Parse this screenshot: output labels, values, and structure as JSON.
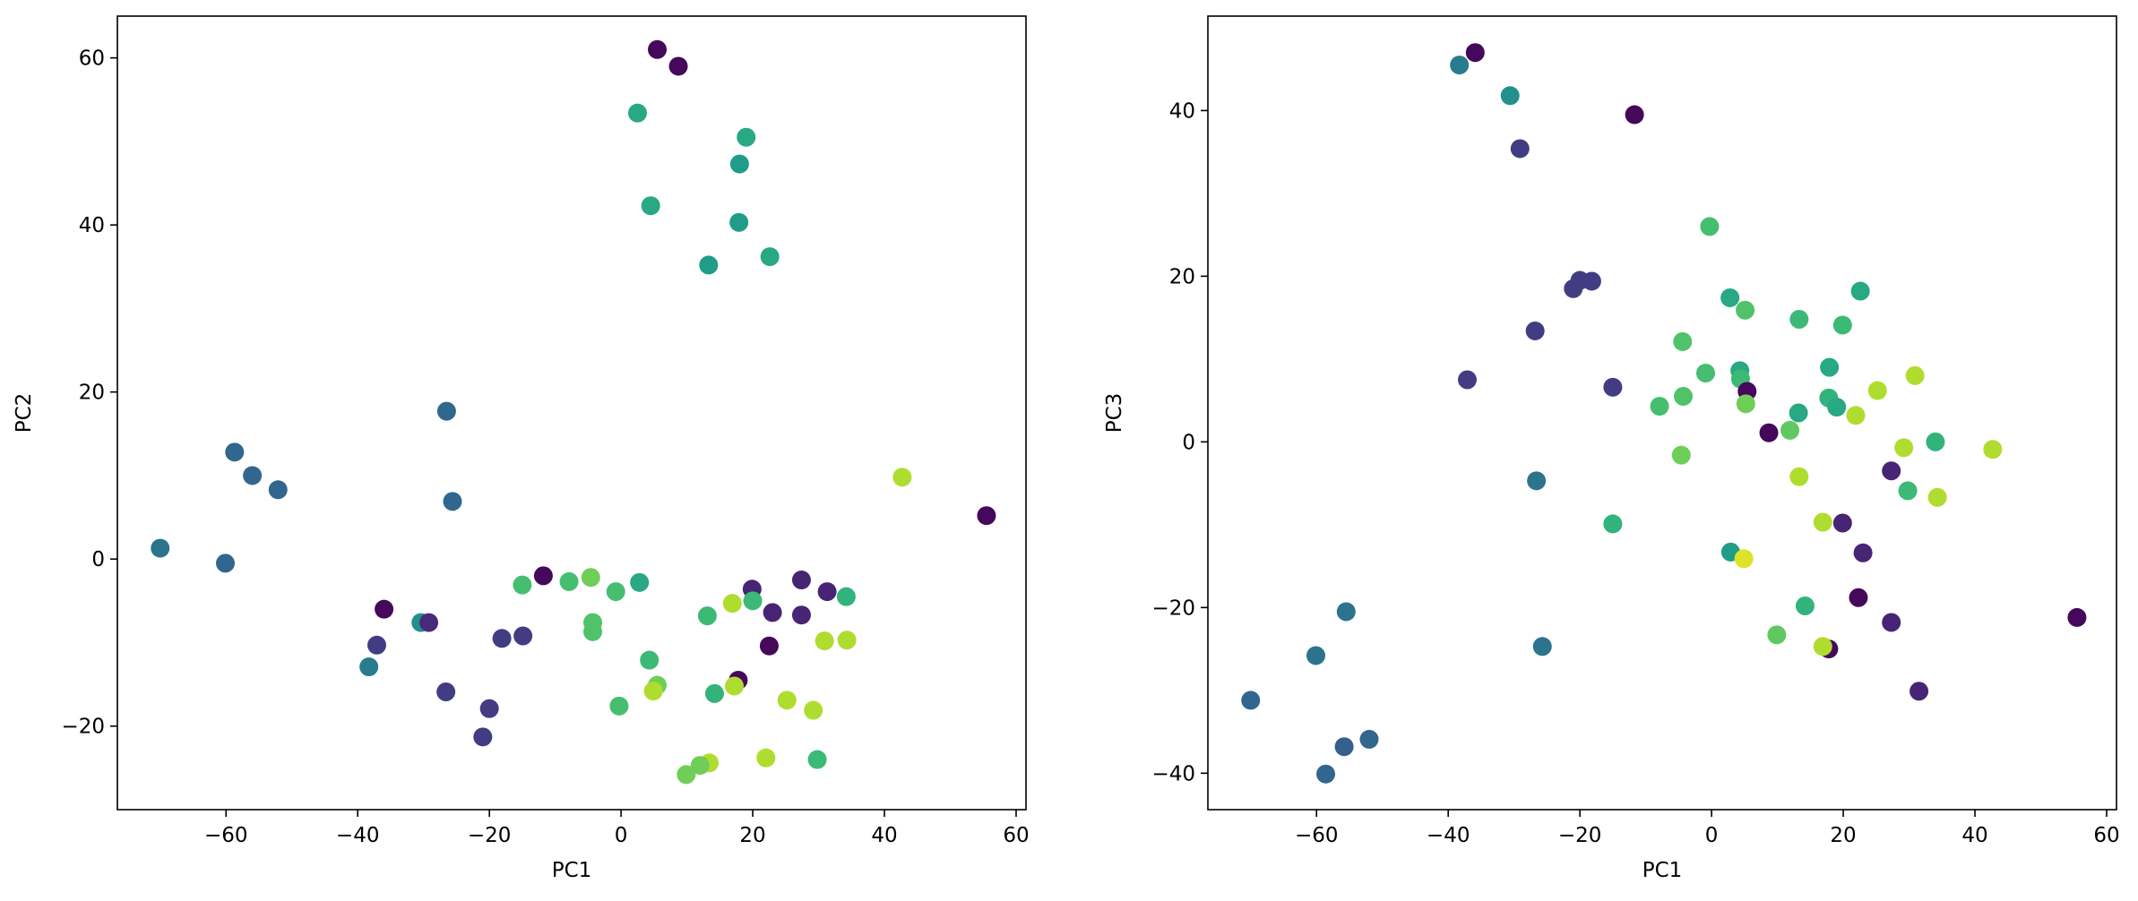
{
  "colormap": [
    "#440154",
    "#482878",
    "#3e4a89",
    "#31688e",
    "#26828e",
    "#1f9e89",
    "#35b779",
    "#6ece58",
    "#b5de2b",
    "#fde725"
  ],
  "chart_data": [
    {
      "type": "scatter",
      "title": "",
      "xlabel": "PC1",
      "ylabel": "PC2",
      "xlim": [
        -76.5,
        61.5
      ],
      "ylim": [
        -30,
        65
      ],
      "xticks": [
        -60,
        -40,
        -20,
        0,
        20,
        40,
        60
      ],
      "yticks": [
        -20,
        0,
        20,
        40,
        60
      ],
      "grid": false,
      "legend": "none",
      "marker_color": "viridis",
      "points": [
        {
          "x": 5.5,
          "y": 61,
          "c": 0.02
        },
        {
          "x": 8.7,
          "y": 59,
          "c": 0.02
        },
        {
          "x": 2.5,
          "y": 53.4,
          "c": 0.6
        },
        {
          "x": 19,
          "y": 50.5,
          "c": 0.6
        },
        {
          "x": 18,
          "y": 47.3,
          "c": 0.55
        },
        {
          "x": 4.5,
          "y": 42.3,
          "c": 0.6
        },
        {
          "x": 17.9,
          "y": 40.3,
          "c": 0.55
        },
        {
          "x": 22.6,
          "y": 36.2,
          "c": 0.6
        },
        {
          "x": 13.3,
          "y": 35.2,
          "c": 0.55
        },
        {
          "x": -26.5,
          "y": 17.7,
          "c": 0.33
        },
        {
          "x": -58.7,
          "y": 12.8,
          "c": 0.33
        },
        {
          "x": -56,
          "y": 10,
          "c": 0.33
        },
        {
          "x": -52.1,
          "y": 8.3,
          "c": 0.33
        },
        {
          "x": -25.6,
          "y": 6.9,
          "c": 0.33
        },
        {
          "x": 42.7,
          "y": 9.8,
          "c": 0.88
        },
        {
          "x": 55.5,
          "y": 5.2,
          "c": 0.02
        },
        {
          "x": -70,
          "y": 1.3,
          "c": 0.38
        },
        {
          "x": -60.1,
          "y": -0.5,
          "c": 0.33
        },
        {
          "x": -11.8,
          "y": -2,
          "c": 0.02
        },
        {
          "x": -4.6,
          "y": -2.2,
          "c": 0.78
        },
        {
          "x": -7.9,
          "y": -2.7,
          "c": 0.7
        },
        {
          "x": 2.8,
          "y": -2.8,
          "c": 0.6
        },
        {
          "x": 27.4,
          "y": -2.5,
          "c": 0.1
        },
        {
          "x": -15,
          "y": -3.1,
          "c": 0.7
        },
        {
          "x": -0.8,
          "y": -3.9,
          "c": 0.7
        },
        {
          "x": 19.9,
          "y": -3.6,
          "c": 0.1
        },
        {
          "x": 31.3,
          "y": -3.9,
          "c": 0.1
        },
        {
          "x": 34.2,
          "y": -4.5,
          "c": 0.65
        },
        {
          "x": 20,
          "y": -5,
          "c": 0.68
        },
        {
          "x": 16.9,
          "y": -5.3,
          "c": 0.88
        },
        {
          "x": -36,
          "y": -6,
          "c": 0.02
        },
        {
          "x": 23,
          "y": -6.4,
          "c": 0.1
        },
        {
          "x": 27.4,
          "y": -6.7,
          "c": 0.1
        },
        {
          "x": 13.1,
          "y": -6.8,
          "c": 0.68
        },
        {
          "x": -30.4,
          "y": -7.6,
          "c": 0.5
        },
        {
          "x": -29.2,
          "y": -7.6,
          "c": 0.12
        },
        {
          "x": -4.3,
          "y": -7.6,
          "c": 0.72
        },
        {
          "x": -4.3,
          "y": -8.7,
          "c": 0.72
        },
        {
          "x": -14.9,
          "y": -9.2,
          "c": 0.18
        },
        {
          "x": -18.1,
          "y": -9.5,
          "c": 0.18
        },
        {
          "x": 34.3,
          "y": -9.7,
          "c": 0.88
        },
        {
          "x": 30.9,
          "y": -9.8,
          "c": 0.88
        },
        {
          "x": -37.1,
          "y": -10.3,
          "c": 0.18
        },
        {
          "x": 22.5,
          "y": -10.4,
          "c": 0.02
        },
        {
          "x": 4.3,
          "y": -12.1,
          "c": 0.68
        },
        {
          "x": -38.3,
          "y": -12.9,
          "c": 0.42
        },
        {
          "x": 17.8,
          "y": -14.5,
          "c": 0.02
        },
        {
          "x": 17.2,
          "y": -15.2,
          "c": 0.88
        },
        {
          "x": 5.5,
          "y": -15.1,
          "c": 0.78
        },
        {
          "x": 4.9,
          "y": -15.8,
          "c": 0.88
        },
        {
          "x": -26.6,
          "y": -15.9,
          "c": 0.18
        },
        {
          "x": 14.2,
          "y": -16.1,
          "c": 0.65
        },
        {
          "x": 25.2,
          "y": -16.9,
          "c": 0.88
        },
        {
          "x": -0.3,
          "y": -17.6,
          "c": 0.7
        },
        {
          "x": -20,
          "y": -17.9,
          "c": 0.18
        },
        {
          "x": 29.2,
          "y": -18.1,
          "c": 0.88
        },
        {
          "x": -21,
          "y": -21.3,
          "c": 0.18
        },
        {
          "x": 22,
          "y": -23.8,
          "c": 0.88
        },
        {
          "x": 29.8,
          "y": -24,
          "c": 0.68
        },
        {
          "x": 13.4,
          "y": -24.4,
          "c": 0.88
        },
        {
          "x": 12,
          "y": -24.7,
          "c": 0.78
        },
        {
          "x": 9.9,
          "y": -25.8,
          "c": 0.78
        }
      ]
    },
    {
      "type": "scatter",
      "title": "",
      "xlabel": "PC1",
      "ylabel": "PC3",
      "xlim": [
        -76.5,
        61.5
      ],
      "ylim": [
        -44.4,
        51.4
      ],
      "xticks": [
        -60,
        -40,
        -20,
        0,
        20,
        40,
        60
      ],
      "yticks": [
        -40,
        -20,
        0,
        20,
        40
      ],
      "grid": false,
      "legend": "none",
      "marker_color": "viridis",
      "points": [
        {
          "x": -35.9,
          "y": 47,
          "c": 0.02
        },
        {
          "x": -38.3,
          "y": 45.5,
          "c": 0.42
        },
        {
          "x": -30.6,
          "y": 41.8,
          "c": 0.5
        },
        {
          "x": -11.7,
          "y": 39.5,
          "c": 0.02
        },
        {
          "x": -29.1,
          "y": 35.4,
          "c": 0.18
        },
        {
          "x": -0.3,
          "y": 26,
          "c": 0.7
        },
        {
          "x": -20,
          "y": 19.5,
          "c": 0.18
        },
        {
          "x": -18.2,
          "y": 19.4,
          "c": 0.18
        },
        {
          "x": -21,
          "y": 18.5,
          "c": 0.18
        },
        {
          "x": 22.6,
          "y": 18.2,
          "c": 0.6
        },
        {
          "x": 2.8,
          "y": 17.4,
          "c": 0.6
        },
        {
          "x": 5.1,
          "y": 15.9,
          "c": 0.72
        },
        {
          "x": 13.3,
          "y": 14.8,
          "c": 0.68
        },
        {
          "x": 19.9,
          "y": 14.1,
          "c": 0.68
        },
        {
          "x": -26.8,
          "y": 13.4,
          "c": 0.18
        },
        {
          "x": -4.4,
          "y": 12.1,
          "c": 0.72
        },
        {
          "x": 17.9,
          "y": 9,
          "c": 0.6
        },
        {
          "x": 4.3,
          "y": 8.6,
          "c": 0.6
        },
        {
          "x": -0.9,
          "y": 8.3,
          "c": 0.7
        },
        {
          "x": 30.9,
          "y": 8,
          "c": 0.88
        },
        {
          "x": 4.4,
          "y": 7.6,
          "c": 0.68
        },
        {
          "x": -37.1,
          "y": 7.5,
          "c": 0.18
        },
        {
          "x": -15,
          "y": 6.6,
          "c": 0.18
        },
        {
          "x": 25.2,
          "y": 6.2,
          "c": 0.88
        },
        {
          "x": 5.4,
          "y": 6.1,
          "c": 0.02
        },
        {
          "x": -4.3,
          "y": 5.5,
          "c": 0.72
        },
        {
          "x": 17.8,
          "y": 5.3,
          "c": 0.65
        },
        {
          "x": 5.2,
          "y": 4.6,
          "c": 0.78
        },
        {
          "x": -7.9,
          "y": 4.3,
          "c": 0.7
        },
        {
          "x": 19,
          "y": 4.2,
          "c": 0.6
        },
        {
          "x": 13.2,
          "y": 3.5,
          "c": 0.6
        },
        {
          "x": 21.9,
          "y": 3.2,
          "c": 0.88
        },
        {
          "x": 11.9,
          "y": 1.4,
          "c": 0.75
        },
        {
          "x": 8.7,
          "y": 1.1,
          "c": 0.02
        },
        {
          "x": 34,
          "y": 0,
          "c": 0.65
        },
        {
          "x": 29.2,
          "y": -0.7,
          "c": 0.88
        },
        {
          "x": 42.7,
          "y": -0.9,
          "c": 0.88
        },
        {
          "x": -4.6,
          "y": -1.6,
          "c": 0.78
        },
        {
          "x": 27.3,
          "y": -3.5,
          "c": 0.1
        },
        {
          "x": 13.3,
          "y": -4.2,
          "c": 0.88
        },
        {
          "x": -26.6,
          "y": -4.7,
          "c": 0.38
        },
        {
          "x": 29.8,
          "y": -5.9,
          "c": 0.68
        },
        {
          "x": 34.3,
          "y": -6.7,
          "c": 0.88
        },
        {
          "x": 16.9,
          "y": -9.7,
          "c": 0.88
        },
        {
          "x": 19.9,
          "y": -9.8,
          "c": 0.1
        },
        {
          "x": -15,
          "y": -9.9,
          "c": 0.65
        },
        {
          "x": 23,
          "y": -13.4,
          "c": 0.1
        },
        {
          "x": 2.9,
          "y": -13.3,
          "c": 0.55
        },
        {
          "x": 4.9,
          "y": -14.1,
          "c": 0.95
        },
        {
          "x": 22.3,
          "y": -18.8,
          "c": 0.02
        },
        {
          "x": 14.2,
          "y": -19.8,
          "c": 0.65
        },
        {
          "x": -55.5,
          "y": -20.5,
          "c": 0.38
        },
        {
          "x": 55.5,
          "y": -21.2,
          "c": 0.02
        },
        {
          "x": 27.3,
          "y": -21.8,
          "c": 0.1
        },
        {
          "x": 9.9,
          "y": -23.3,
          "c": 0.75
        },
        {
          "x": -25.7,
          "y": -24.7,
          "c": 0.38
        },
        {
          "x": 17.8,
          "y": -25,
          "c": 0.02
        },
        {
          "x": 16.9,
          "y": -24.7,
          "c": 0.88
        },
        {
          "x": -60.1,
          "y": -25.8,
          "c": 0.38
        },
        {
          "x": 31.5,
          "y": -30.1,
          "c": 0.1
        },
        {
          "x": -70,
          "y": -31.2,
          "c": 0.33
        },
        {
          "x": -52,
          "y": -35.9,
          "c": 0.33
        },
        {
          "x": -55.8,
          "y": -36.8,
          "c": 0.3
        },
        {
          "x": -58.6,
          "y": -40.1,
          "c": 0.33
        }
      ]
    }
  ]
}
